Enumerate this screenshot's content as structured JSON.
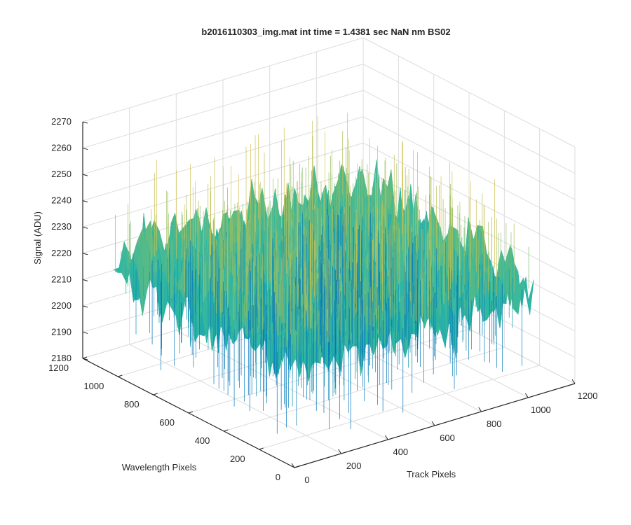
{
  "chart_data": {
    "type": "surface",
    "title": "b2016110303_img.mat int time = 1.4381 sec  NaN nm BS02",
    "xlabel": "Track Pixels",
    "ylabel": "Wavelength Pixels",
    "zlabel": "Signal (ADU)",
    "xlim": [
      0,
      1200
    ],
    "ylim": [
      0,
      1200
    ],
    "zlim": [
      2180,
      2270
    ],
    "x_ticks": [
      "0",
      "200",
      "400",
      "600",
      "800",
      "1000",
      "1200"
    ],
    "y_ticks": [
      "0",
      "200",
      "400",
      "600",
      "800",
      "1000",
      "1200"
    ],
    "z_ticks": [
      "2180",
      "2190",
      "2200",
      "2210",
      "2220",
      "2230",
      "2240",
      "2250",
      "2260",
      "2270"
    ],
    "grid": true,
    "colormap": "parula",
    "colors": {
      "low": "#0072bd",
      "mid": "#2eb7a4",
      "high": "#d9c150",
      "axis": "#262626",
      "grid": "#dcdcdc"
    },
    "surface": {
      "x_range": [
        0,
        1024
      ],
      "y_range": [
        0,
        1024
      ],
      "z_min": 2188,
      "z_max": 2258,
      "z_typical": 2222
    }
  }
}
